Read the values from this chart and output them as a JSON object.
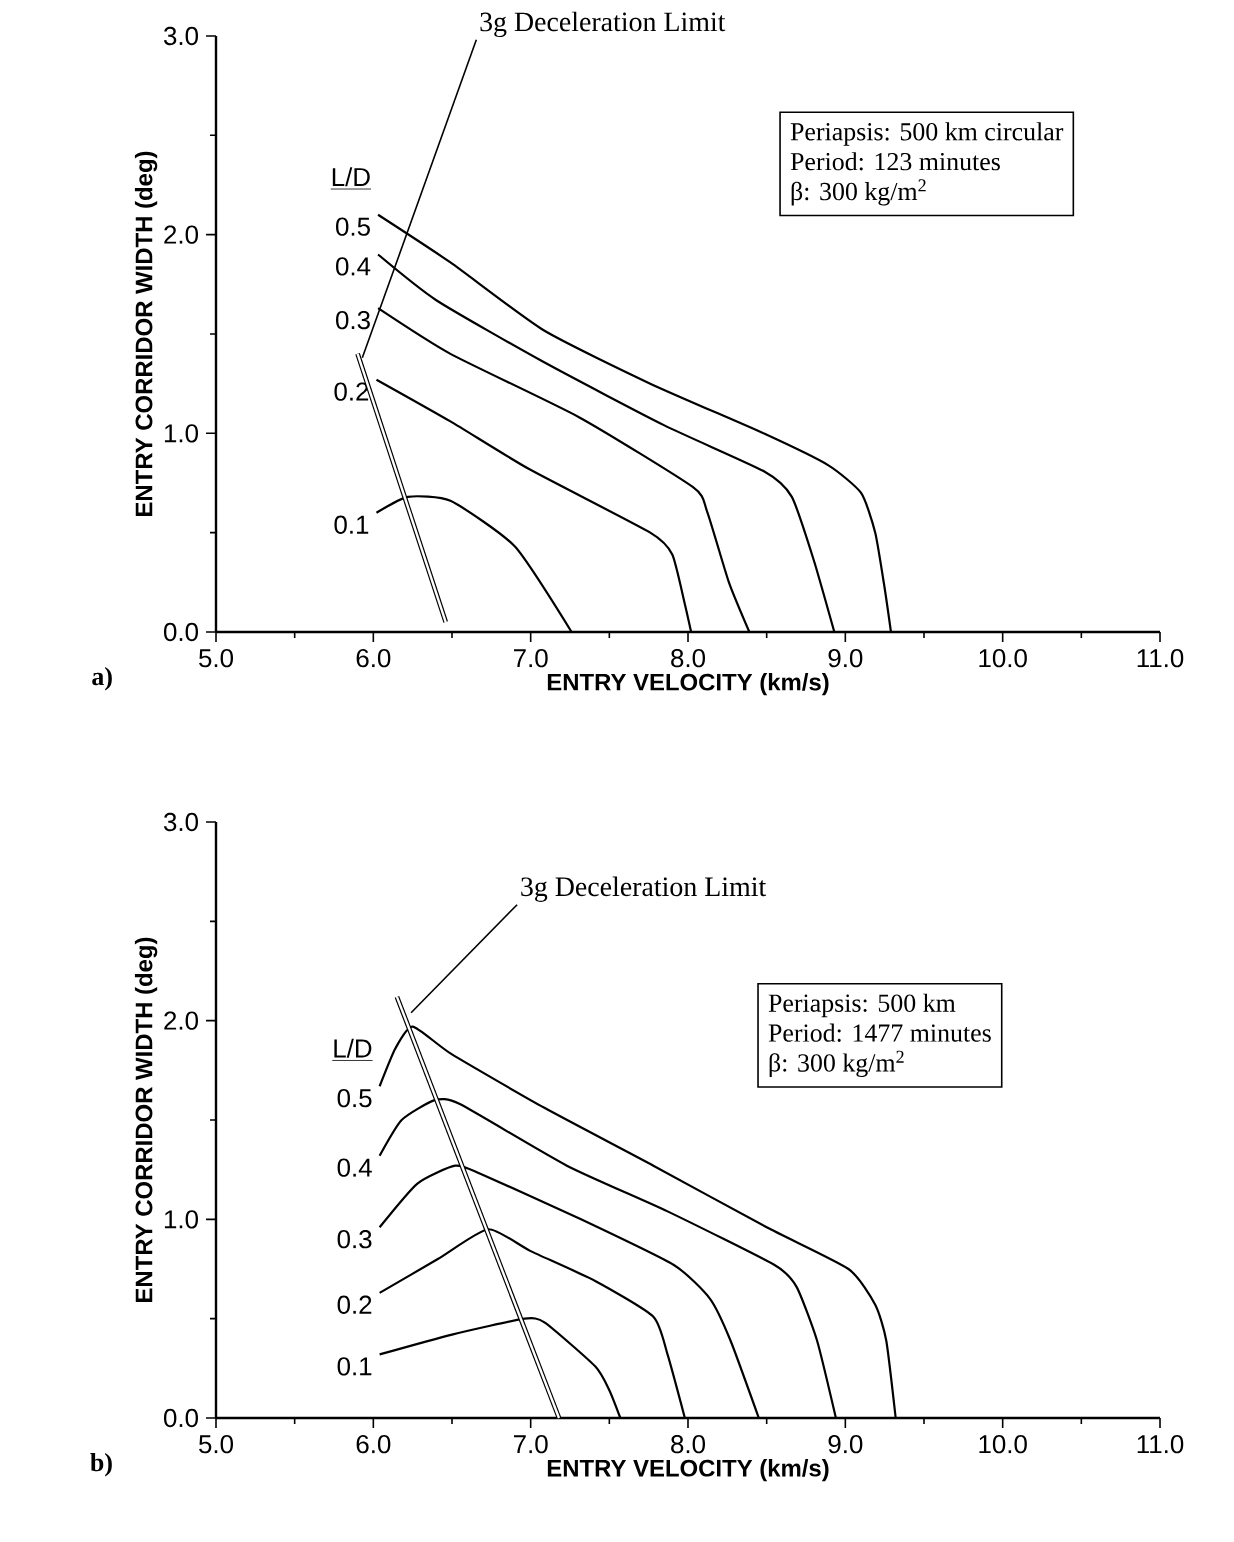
{
  "chart_data": [
    {
      "type": "line",
      "xlabel": "ENTRY VELOCITY (km/s)",
      "ylabel": "ENTRY CORRIDOR WIDTH (deg)",
      "legend_title": "L/D",
      "xlim": [
        5,
        11
      ],
      "ylim": [
        0,
        3
      ],
      "xticks": [
        {
          "value": 5,
          "label": "5.0"
        },
        {
          "value": 6,
          "label": "6.0"
        },
        {
          "value": 7,
          "label": "7.0"
        },
        {
          "value": 8,
          "label": "8.0"
        },
        {
          "value": 9,
          "label": "9.0"
        },
        {
          "value": 10,
          "label": "10.0"
        },
        {
          "value": 11,
          "label": "11.0"
        }
      ],
      "yticks": [
        {
          "value": 0,
          "label": "0.0"
        },
        {
          "value": 1,
          "label": "1.0"
        },
        {
          "value": 2,
          "label": "2.0"
        },
        {
          "value": 3,
          "label": "3.0"
        }
      ],
      "series": [
        {
          "name": "0.5",
          "color": "#000000",
          "x": [
            6.03,
            6.49,
            7.08,
            7.76,
            8.48,
            8.89,
            9.1,
            9.19,
            9.25,
            9.29
          ],
          "values": [
            2.1,
            1.86,
            1.52,
            1.25,
            1.0,
            0.84,
            0.7,
            0.5,
            0.22,
            0
          ]
        },
        {
          "name": "0.4",
          "color": "#000000",
          "x": [
            6.03,
            6.4,
            7.08,
            7.85,
            8.48,
            8.66,
            8.8,
            8.93
          ],
          "values": [
            1.9,
            1.67,
            1.36,
            1.04,
            0.81,
            0.68,
            0.36,
            0
          ]
        },
        {
          "name": "0.3",
          "color": "#000000",
          "x": [
            6.03,
            6.49,
            7.31,
            8.03,
            8.12,
            8.26,
            8.39
          ],
          "values": [
            1.63,
            1.4,
            1.08,
            0.73,
            0.61,
            0.25,
            0
          ]
        },
        {
          "name": "0.2",
          "color": "#000000",
          "x": [
            6.02,
            6.49,
            6.99,
            7.76,
            7.9,
            7.98,
            8.02
          ],
          "values": [
            1.27,
            1.06,
            0.82,
            0.5,
            0.39,
            0.14,
            0
          ]
        },
        {
          "name": "0.1",
          "color": "#000000",
          "x": [
            6.02,
            6.22,
            6.49,
            6.9,
            7.26
          ],
          "values": [
            0.6,
            0.68,
            0.66,
            0.43,
            0
          ]
        },
        {
          "color": "#000000",
          "x": [
            5.9,
            6.46
          ],
          "values": [
            1.4,
            0.05
          ]
        }
      ],
      "annotations": [
        {
          "text": "3g Deceleration Limit",
          "x": 5.93,
          "y": 1.38
        },
        "Periapsis: 500 km circular",
        "Period: 123 minutes",
        "β: 300 kg/m$^{2}$",
        "a)"
      ]
    },
    {
      "type": "line",
      "xlabel": "ENTRY VELOCITY (km/s)",
      "ylabel": "ENTRY CORRIDOR WIDTH (deg)",
      "legend_title": "L/D",
      "xlim": [
        5,
        11
      ],
      "ylim": [
        0,
        3
      ],
      "xticks": [
        {
          "value": 5,
          "label": "5.0"
        },
        {
          "value": 6,
          "label": "6.0"
        },
        {
          "value": 7,
          "label": "7.0"
        },
        {
          "value": 8,
          "label": "8.0"
        },
        {
          "value": 9,
          "label": "9.0"
        },
        {
          "value": 10,
          "label": "10.0"
        },
        {
          "value": 11,
          "label": "11.0"
        }
      ],
      "yticks": [
        {
          "value": 0,
          "label": "0.0"
        },
        {
          "value": 1,
          "label": "1.0"
        },
        {
          "value": 2,
          "label": "2.0"
        },
        {
          "value": 3,
          "label": "3.0"
        }
      ],
      "series": [
        {
          "name": "0.5",
          "color": "#000000",
          "x": [
            6.04,
            6.14,
            6.25,
            6.5,
            7.09,
            7.78,
            8.5,
            9.02,
            9.19,
            9.26,
            9.32
          ],
          "values": [
            1.67,
            1.86,
            1.97,
            1.83,
            1.56,
            1.27,
            0.96,
            0.75,
            0.57,
            0.39,
            0
          ]
        },
        {
          "name": "0.4",
          "color": "#000000",
          "x": [
            6.04,
            6.18,
            6.39,
            6.55,
            7.23,
            7.87,
            8.55,
            8.69,
            8.82,
            8.94
          ],
          "values": [
            1.32,
            1.5,
            1.6,
            1.58,
            1.27,
            1.04,
            0.77,
            0.66,
            0.39,
            0
          ]
        },
        {
          "name": "0.3",
          "color": "#000000",
          "x": [
            6.04,
            6.28,
            6.52,
            6.68,
            7.32,
            7.91,
            8.14,
            8.27,
            8.45
          ],
          "values": [
            0.96,
            1.18,
            1.27,
            1.23,
            1.0,
            0.77,
            0.6,
            0.39,
            0
          ]
        },
        {
          "name": "0.2",
          "color": "#000000",
          "x": [
            6.04,
            6.41,
            6.73,
            7.0,
            7.41,
            7.78,
            7.87,
            7.98
          ],
          "values": [
            0.63,
            0.8,
            0.95,
            0.84,
            0.69,
            0.51,
            0.32,
            0
          ]
        },
        {
          "name": "0.1",
          "color": "#000000",
          "x": [
            6.04,
            6.5,
            6.96,
            7.09,
            7.41,
            7.5,
            7.57
          ],
          "values": [
            0.32,
            0.42,
            0.5,
            0.48,
            0.26,
            0.14,
            0
          ]
        },
        {
          "color": "#000000",
          "x": [
            6.15,
            7.18
          ],
          "values": [
            2.12,
            0
          ]
        }
      ],
      "annotations": [
        {
          "text": "3g Deceleration Limit",
          "x": 6.24,
          "y": 2.04
        },
        "Periapsis: 500 km",
        "Period: 1477 minutes",
        "β: 300 kg/m$^{2}$",
        "b)"
      ]
    }
  ]
}
